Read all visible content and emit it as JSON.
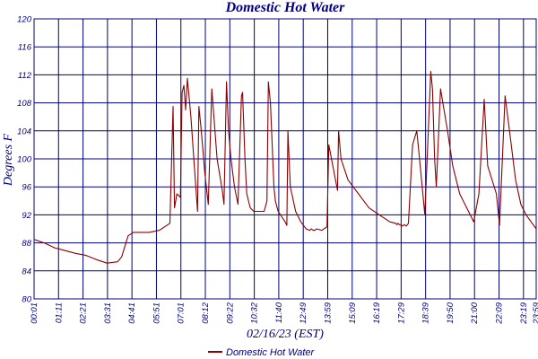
{
  "chart_data": {
    "type": "line",
    "title": "Domestic Hot Water",
    "xlabel": "02/16/23 (EST)",
    "ylabel": "Degrees F",
    "ylim": [
      80,
      120
    ],
    "yticks": [
      80,
      84,
      88,
      92,
      96,
      100,
      104,
      108,
      112,
      116,
      120
    ],
    "xlim_minutes": [
      1,
      1439
    ],
    "xtick_labels": [
      "00:01",
      "01:11",
      "02:21",
      "03:31",
      "04:41",
      "05:51",
      "07:01",
      "08:12",
      "09:22",
      "10:32",
      "11:40",
      "12:49",
      "13:59",
      "15:09",
      "16:19",
      "17:29",
      "18:39",
      "19:50",
      "21:00",
      "22:09",
      "23:19",
      "23:59"
    ],
    "grid": true,
    "legend": "bottom-center",
    "colors": {
      "line": "#8b0000",
      "grid": "#000080",
      "text": "#000080"
    },
    "series": [
      {
        "name": "Domestic Hot Water",
        "x": [
          "00:00",
          "00:30",
          "01:00",
          "01:30",
          "02:00",
          "02:30",
          "03:00",
          "03:30",
          "04:00",
          "04:12",
          "04:30",
          "04:45",
          "05:00",
          "05:30",
          "06:00",
          "06:15",
          "06:30",
          "06:39",
          "06:43",
          "06:50",
          "07:00",
          "07:05",
          "07:10",
          "07:15",
          "07:20",
          "07:30",
          "07:40",
          "07:49",
          "07:53",
          "08:00",
          "08:10",
          "08:20",
          "08:30",
          "08:45",
          "09:00",
          "09:05",
          "09:12",
          "09:18",
          "09:25",
          "09:35",
          "09:45",
          "09:55",
          "09:58",
          "10:05",
          "10:10",
          "10:20",
          "10:30",
          "10:45",
          "11:00",
          "11:08",
          "11:12",
          "11:18",
          "11:28",
          "11:32",
          "11:40",
          "12:00",
          "12:05",
          "12:08",
          "12:15",
          "12:30",
          "12:45",
          "13:00",
          "13:10",
          "13:15",
          "13:20",
          "13:25",
          "13:30",
          "13:45",
          "14:00",
          "14:05",
          "14:30",
          "14:33",
          "14:40",
          "15:00",
          "15:30",
          "16:00",
          "16:30",
          "17:00",
          "17:17",
          "17:20",
          "17:23",
          "17:27",
          "17:31",
          "17:36",
          "17:41",
          "17:47",
          "17:53",
          "18:05",
          "18:17",
          "18:25",
          "18:40",
          "18:57",
          "19:02",
          "19:08",
          "19:13",
          "19:25",
          "19:45",
          "20:00",
          "20:20",
          "20:45",
          "20:50",
          "21:00",
          "21:15",
          "21:30",
          "21:40",
          "22:05",
          "22:12",
          "22:14",
          "22:30",
          "22:45",
          "23:00",
          "23:15",
          "23:30",
          "23:59"
        ],
        "values": [
          88.5,
          88.0,
          87.3,
          86.9,
          86.5,
          86.2,
          85.6,
          85.1,
          85.3,
          86.0,
          89.0,
          89.5,
          89.5,
          89.5,
          89.8,
          90.3,
          90.8,
          107.5,
          93.0,
          95.0,
          94.5,
          109.5,
          110.5,
          107.0,
          111.5,
          106.0,
          99.0,
          92.5,
          107.5,
          104.0,
          98.0,
          93.5,
          110.0,
          100.0,
          95.5,
          93.5,
          111.0,
          104.0,
          100.0,
          96.0,
          93.5,
          109.0,
          109.5,
          100.0,
          95.0,
          93.0,
          92.5,
          92.5,
          92.5,
          94.0,
          111.0,
          108.0,
          96.0,
          94.0,
          92.5,
          91.0,
          90.5,
          104.0,
          96.0,
          92.5,
          91.0,
          90.0,
          89.8,
          90.0,
          89.8,
          89.8,
          90.0,
          89.8,
          90.3,
          102.0,
          95.5,
          104.0,
          100.0,
          97.0,
          95.0,
          93.0,
          92.0,
          91.0,
          90.8,
          90.6,
          90.8,
          90.6,
          90.6,
          90.4,
          90.6,
          90.4,
          90.8,
          102.0,
          104.0,
          100.0,
          92.0,
          112.5,
          110.0,
          100.0,
          96.0,
          110.0,
          104.0,
          99.0,
          95.0,
          92.5,
          92.0,
          91.0,
          95.0,
          108.5,
          99.0,
          95.0,
          91.5,
          90.5,
          109.0,
          103.0,
          97.0,
          93.5,
          92.0,
          90.0
        ],
        "x_minutes": [
          0,
          30,
          60,
          90,
          120,
          150,
          180,
          210,
          240,
          252,
          270,
          285,
          300,
          330,
          360,
          375,
          390,
          399,
          403,
          410,
          420,
          425,
          430,
          435,
          440,
          450,
          460,
          469,
          473,
          480,
          490,
          500,
          510,
          525,
          540,
          545,
          552,
          558,
          565,
          575,
          585,
          595,
          598,
          605,
          610,
          620,
          630,
          645,
          660,
          668,
          672,
          678,
          688,
          692,
          700,
          720,
          725,
          728,
          735,
          750,
          765,
          780,
          790,
          795,
          800,
          805,
          810,
          825,
          840,
          845,
          870,
          873,
          880,
          900,
          930,
          960,
          990,
          1020,
          1037,
          1040,
          1043,
          1047,
          1051,
          1056,
          1061,
          1067,
          1073,
          1085,
          1097,
          1105,
          1120,
          1137,
          1142,
          1148,
          1153,
          1165,
          1185,
          1200,
          1220,
          1245,
          1250,
          1260,
          1275,
          1290,
          1300,
          1325,
          1332,
          1334,
          1350,
          1365,
          1380,
          1395,
          1410,
          1439
        ]
      }
    ]
  }
}
